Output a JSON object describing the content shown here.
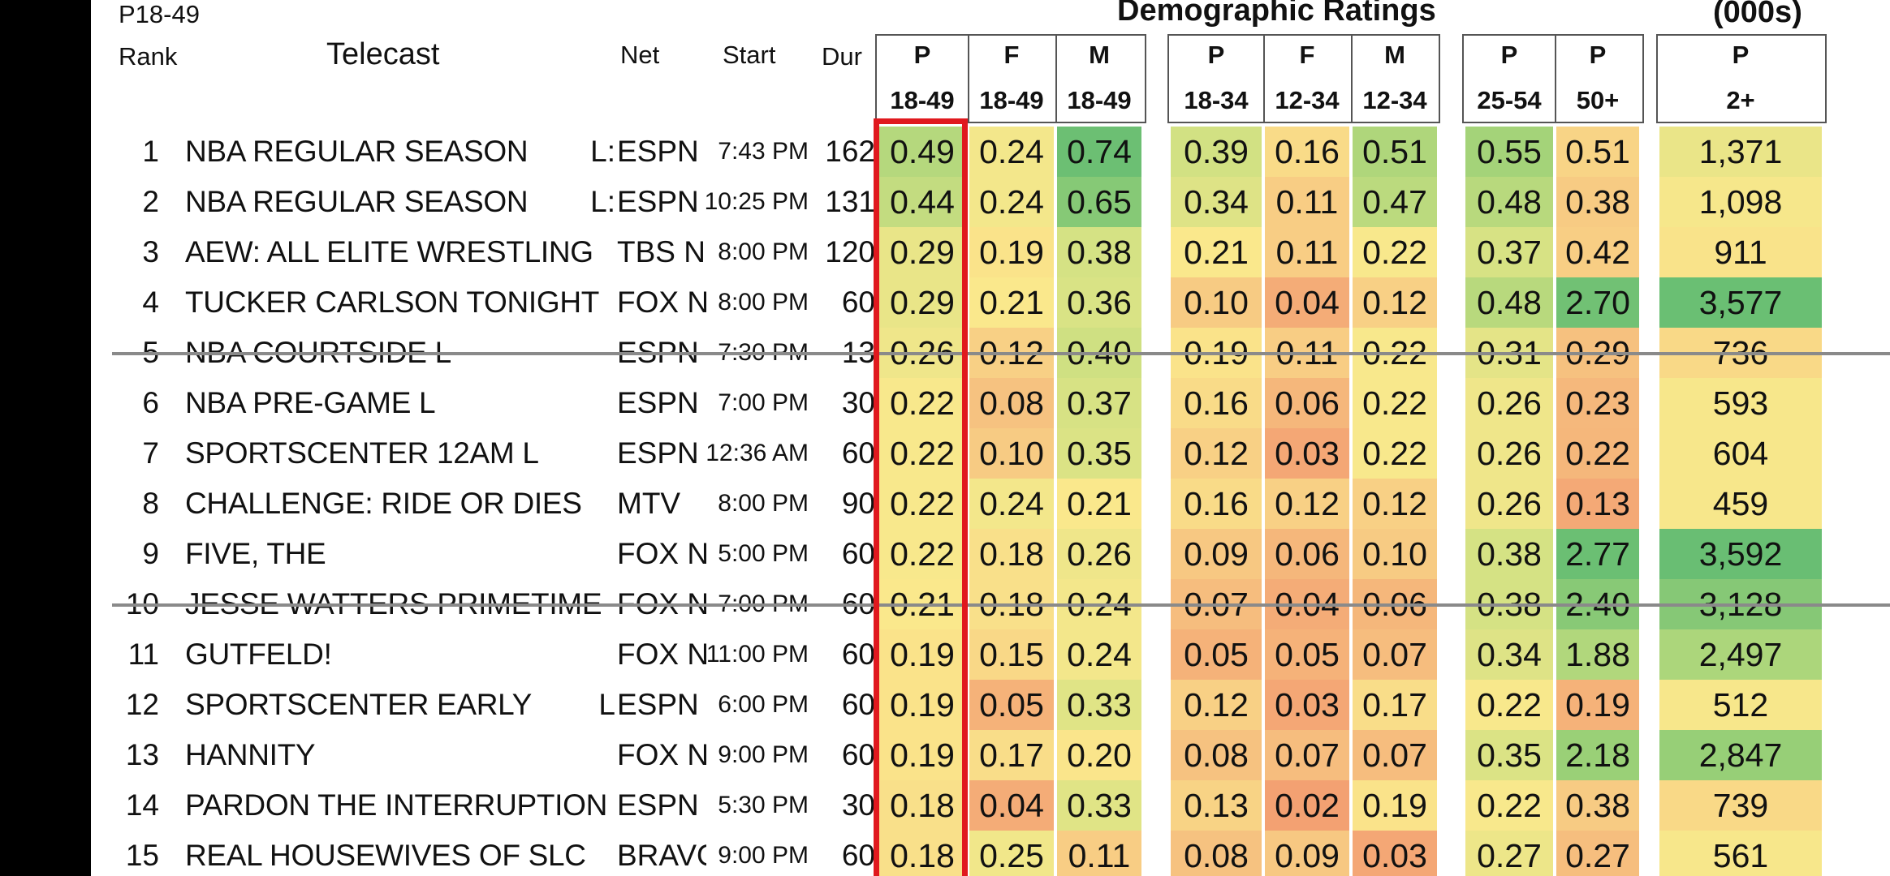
{
  "header": {
    "group_label": "P18-49",
    "section_title": "Demographic Ratings",
    "units_title": "(000s)",
    "rank": "Rank",
    "telecast": "Telecast",
    "net": "Net",
    "start": "Start",
    "dur": "Dur",
    "demo_columns": [
      {
        "top": "P",
        "bottom": "18-49"
      },
      {
        "top": "F",
        "bottom": "18-49"
      },
      {
        "top": "M",
        "bottom": "18-49"
      },
      {
        "top": "P",
        "bottom": "18-34"
      },
      {
        "top": "F",
        "bottom": "12-34"
      },
      {
        "top": "M",
        "bottom": "12-34"
      },
      {
        "top": "P",
        "bottom": "25-54"
      },
      {
        "top": "P",
        "bottom": "50+"
      },
      {
        "top": "P",
        "bottom": "2+"
      }
    ]
  },
  "rows": [
    {
      "rank": "1",
      "telecast": "NBA REGULAR SEASON",
      "flag": "L:",
      "net": "ESPN",
      "start": "7:43 PM",
      "dur": "162",
      "values": [
        "0.49",
        "0.24",
        "0.74",
        "0.39",
        "0.16",
        "0.51",
        "0.55",
        "0.51",
        "1,371"
      ]
    },
    {
      "rank": "2",
      "telecast": "NBA REGULAR SEASON",
      "flag": "L:",
      "net": "ESPN",
      "start": "10:25 PM",
      "dur": "131",
      "values": [
        "0.44",
        "0.24",
        "0.65",
        "0.34",
        "0.11",
        "0.47",
        "0.48",
        "0.38",
        "1,098"
      ]
    },
    {
      "rank": "3",
      "telecast": "AEW: ALL ELITE WRESTLING",
      "flag": "",
      "net": "TBS N",
      "start": "8:00 PM",
      "dur": "120",
      "values": [
        "0.29",
        "0.19",
        "0.38",
        "0.21",
        "0.11",
        "0.22",
        "0.37",
        "0.42",
        "911"
      ]
    },
    {
      "rank": "4",
      "telecast": "TUCKER CARLSON TONIGHT",
      "flag": "",
      "net": "FOX N",
      "start": "8:00 PM",
      "dur": "60",
      "values": [
        "0.29",
        "0.21",
        "0.36",
        "0.10",
        "0.04",
        "0.12",
        "0.48",
        "2.70",
        "3,577"
      ]
    },
    {
      "rank": "5",
      "telecast": "NBA COURTSIDE  L",
      "flag": "",
      "net": "ESPN",
      "start": "7:30 PM",
      "dur": "13",
      "values": [
        "0.26",
        "0.12",
        "0.40",
        "0.19",
        "0.11",
        "0.22",
        "0.31",
        "0.29",
        "736"
      ]
    },
    {
      "rank": "6",
      "telecast": "NBA PRE-GAME   L",
      "flag": "",
      "net": "ESPN",
      "start": "7:00 PM",
      "dur": "30",
      "values": [
        "0.22",
        "0.08",
        "0.37",
        "0.16",
        "0.06",
        "0.22",
        "0.26",
        "0.23",
        "593"
      ]
    },
    {
      "rank": "7",
      "telecast": "SPORTSCENTER 12AM  L",
      "flag": "",
      "net": "ESPN",
      "start": "12:36 AM",
      "dur": "60",
      "values": [
        "0.22",
        "0.10",
        "0.35",
        "0.12",
        "0.03",
        "0.22",
        "0.26",
        "0.22",
        "604"
      ]
    },
    {
      "rank": "8",
      "telecast": "CHALLENGE: RIDE OR DIES",
      "flag": "",
      "net": "MTV",
      "start": "8:00 PM",
      "dur": "90",
      "values": [
        "0.22",
        "0.24",
        "0.21",
        "0.16",
        "0.12",
        "0.12",
        "0.26",
        "0.13",
        "459"
      ]
    },
    {
      "rank": "9",
      "telecast": "FIVE, THE",
      "flag": "",
      "net": "FOX N",
      "start": "5:00 PM",
      "dur": "60",
      "values": [
        "0.22",
        "0.18",
        "0.26",
        "0.09",
        "0.06",
        "0.10",
        "0.38",
        "2.77",
        "3,592"
      ]
    },
    {
      "rank": "10",
      "telecast": "JESSE WATTERS PRIMETIME",
      "flag": "",
      "net": "FOX N",
      "start": "7:00 PM",
      "dur": "60",
      "values": [
        "0.21",
        "0.18",
        "0.24",
        "0.07",
        "0.04",
        "0.06",
        "0.38",
        "2.40",
        "3,128"
      ]
    },
    {
      "rank": "11",
      "telecast": "GUTFELD!",
      "flag": "",
      "net": "FOX N",
      "start": "11:00 PM",
      "dur": "60",
      "values": [
        "0.19",
        "0.15",
        "0.24",
        "0.05",
        "0.05",
        "0.07",
        "0.34",
        "1.88",
        "2,497"
      ]
    },
    {
      "rank": "12",
      "telecast": "SPORTSCENTER EARLY",
      "flag": "L",
      "net": "ESPN",
      "start": "6:00 PM",
      "dur": "60",
      "values": [
        "0.19",
        "0.05",
        "0.33",
        "0.12",
        "0.03",
        "0.17",
        "0.22",
        "0.19",
        "512"
      ]
    },
    {
      "rank": "13",
      "telecast": "HANNITY",
      "flag": "",
      "net": "FOX N",
      "start": "9:00 PM",
      "dur": "60",
      "values": [
        "0.19",
        "0.17",
        "0.20",
        "0.08",
        "0.07",
        "0.07",
        "0.35",
        "2.18",
        "2,847"
      ]
    },
    {
      "rank": "14",
      "telecast": "PARDON THE INTERRUPTION",
      "flag": "",
      "net": "ESPN",
      "start": "5:30 PM",
      "dur": "30",
      "values": [
        "0.18",
        "0.04",
        "0.33",
        "0.13",
        "0.02",
        "0.19",
        "0.22",
        "0.38",
        "739"
      ]
    },
    {
      "rank": "15",
      "telecast": "REAL HOUSEWIVES OF SLC",
      "flag": "",
      "net": "BRAVO",
      "start": "9:00 PM",
      "dur": "60",
      "values": [
        "0.18",
        "0.25",
        "0.11",
        "0.08",
        "0.09",
        "0.03",
        "0.27",
        "0.27",
        "561"
      ]
    }
  ],
  "highlight_color": "#e0191e"
}
